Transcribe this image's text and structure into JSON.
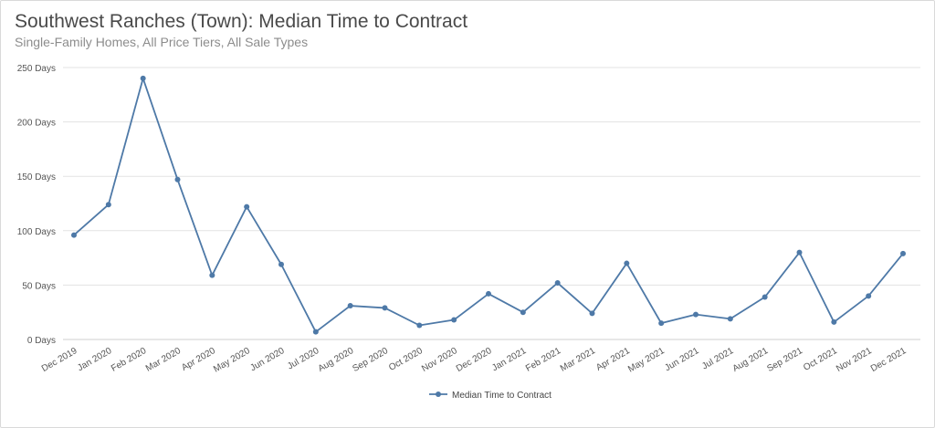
{
  "chart_data": {
    "type": "line",
    "title": "Southwest Ranches (Town): Median Time to Contract",
    "subtitle": "Single-Family Homes, All Price Tiers, All Sale Types",
    "categories": [
      "Dec 2019",
      "Jan 2020",
      "Feb 2020",
      "Mar 2020",
      "Apr 2020",
      "May 2020",
      "Jun 2020",
      "Jul 2020",
      "Aug 2020",
      "Sep 2020",
      "Oct 2020",
      "Nov 2020",
      "Dec 2020",
      "Jan 2021",
      "Feb 2021",
      "Mar 2021",
      "Apr 2021",
      "May 2021",
      "Jun 2021",
      "Jul 2021",
      "Aug 2021",
      "Sep 2021",
      "Oct 2021",
      "Nov 2021",
      "Dec 2021"
    ],
    "series": [
      {
        "name": "Median Time to Contract",
        "color": "#4e79a7",
        "values": [
          96,
          124,
          240,
          147,
          59,
          122,
          69,
          7,
          31,
          29,
          13,
          18,
          42,
          25,
          52,
          24,
          70,
          15,
          23,
          19,
          39,
          80,
          16,
          40,
          79
        ]
      }
    ],
    "y_ticks": [
      "0 Days",
      "50 Days",
      "100 Days",
      "150 Days",
      "200 Days",
      "250 Days"
    ],
    "ylim": [
      0,
      250
    ],
    "grid": true,
    "legend_position": "bottom-center"
  }
}
